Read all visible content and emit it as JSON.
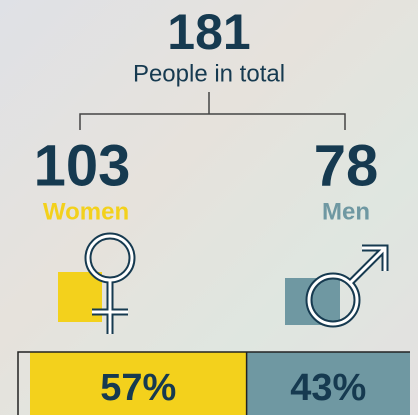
{
  "total": {
    "value": "181",
    "label": "People in total"
  },
  "groups": [
    {
      "value": "103",
      "label": "Women",
      "percent": 57,
      "percent_label": "57%"
    },
    {
      "value": "78",
      "label": "Men",
      "percent": 43,
      "percent_label": "43%"
    }
  ]
}
